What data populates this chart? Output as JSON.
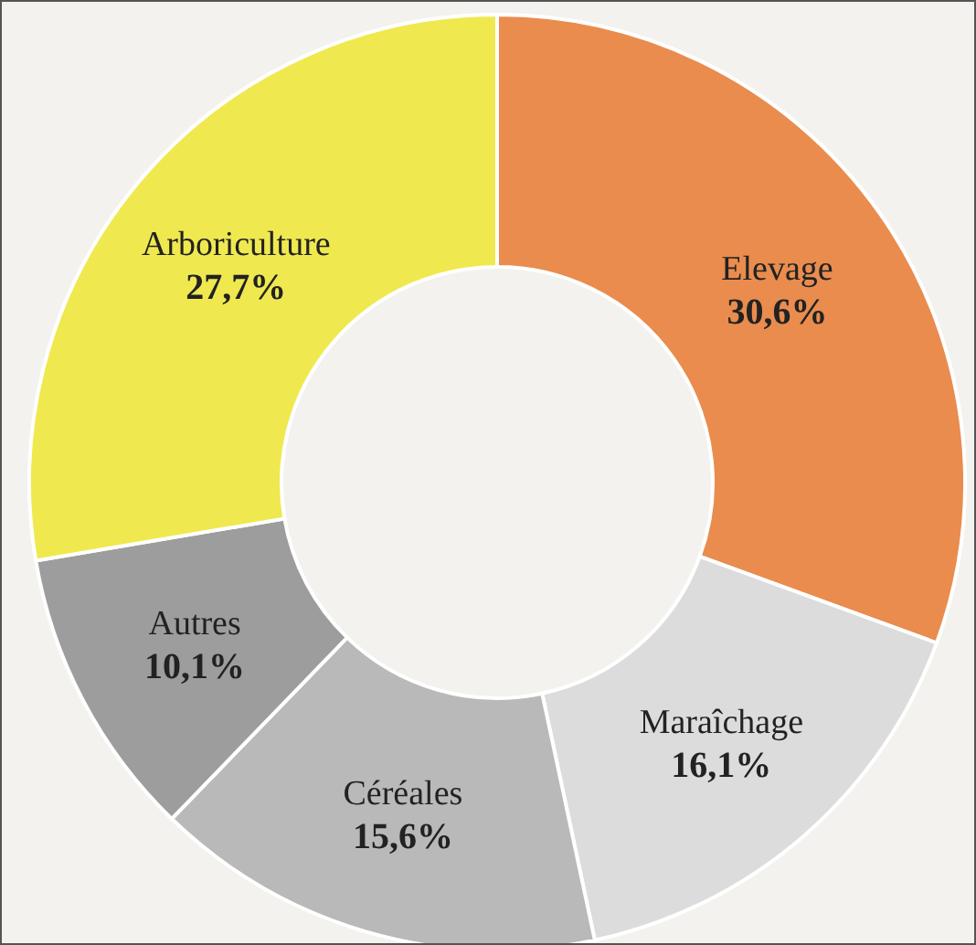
{
  "chart_data": {
    "type": "donut",
    "categories": [
      "Elevage",
      "Maraîchage",
      "Céréales",
      "Autres",
      "Arboriculture"
    ],
    "values": [
      30.6,
      16.1,
      15.6,
      10.1,
      27.7
    ],
    "value_labels": [
      "30,6%",
      "16,1%",
      "15,6%",
      "10,1%",
      "27,7%"
    ],
    "colors": [
      "#e98c4e",
      "#dcdcdc",
      "#b9b9b9",
      "#9d9d9d",
      "#efe94f"
    ],
    "legend": false
  }
}
